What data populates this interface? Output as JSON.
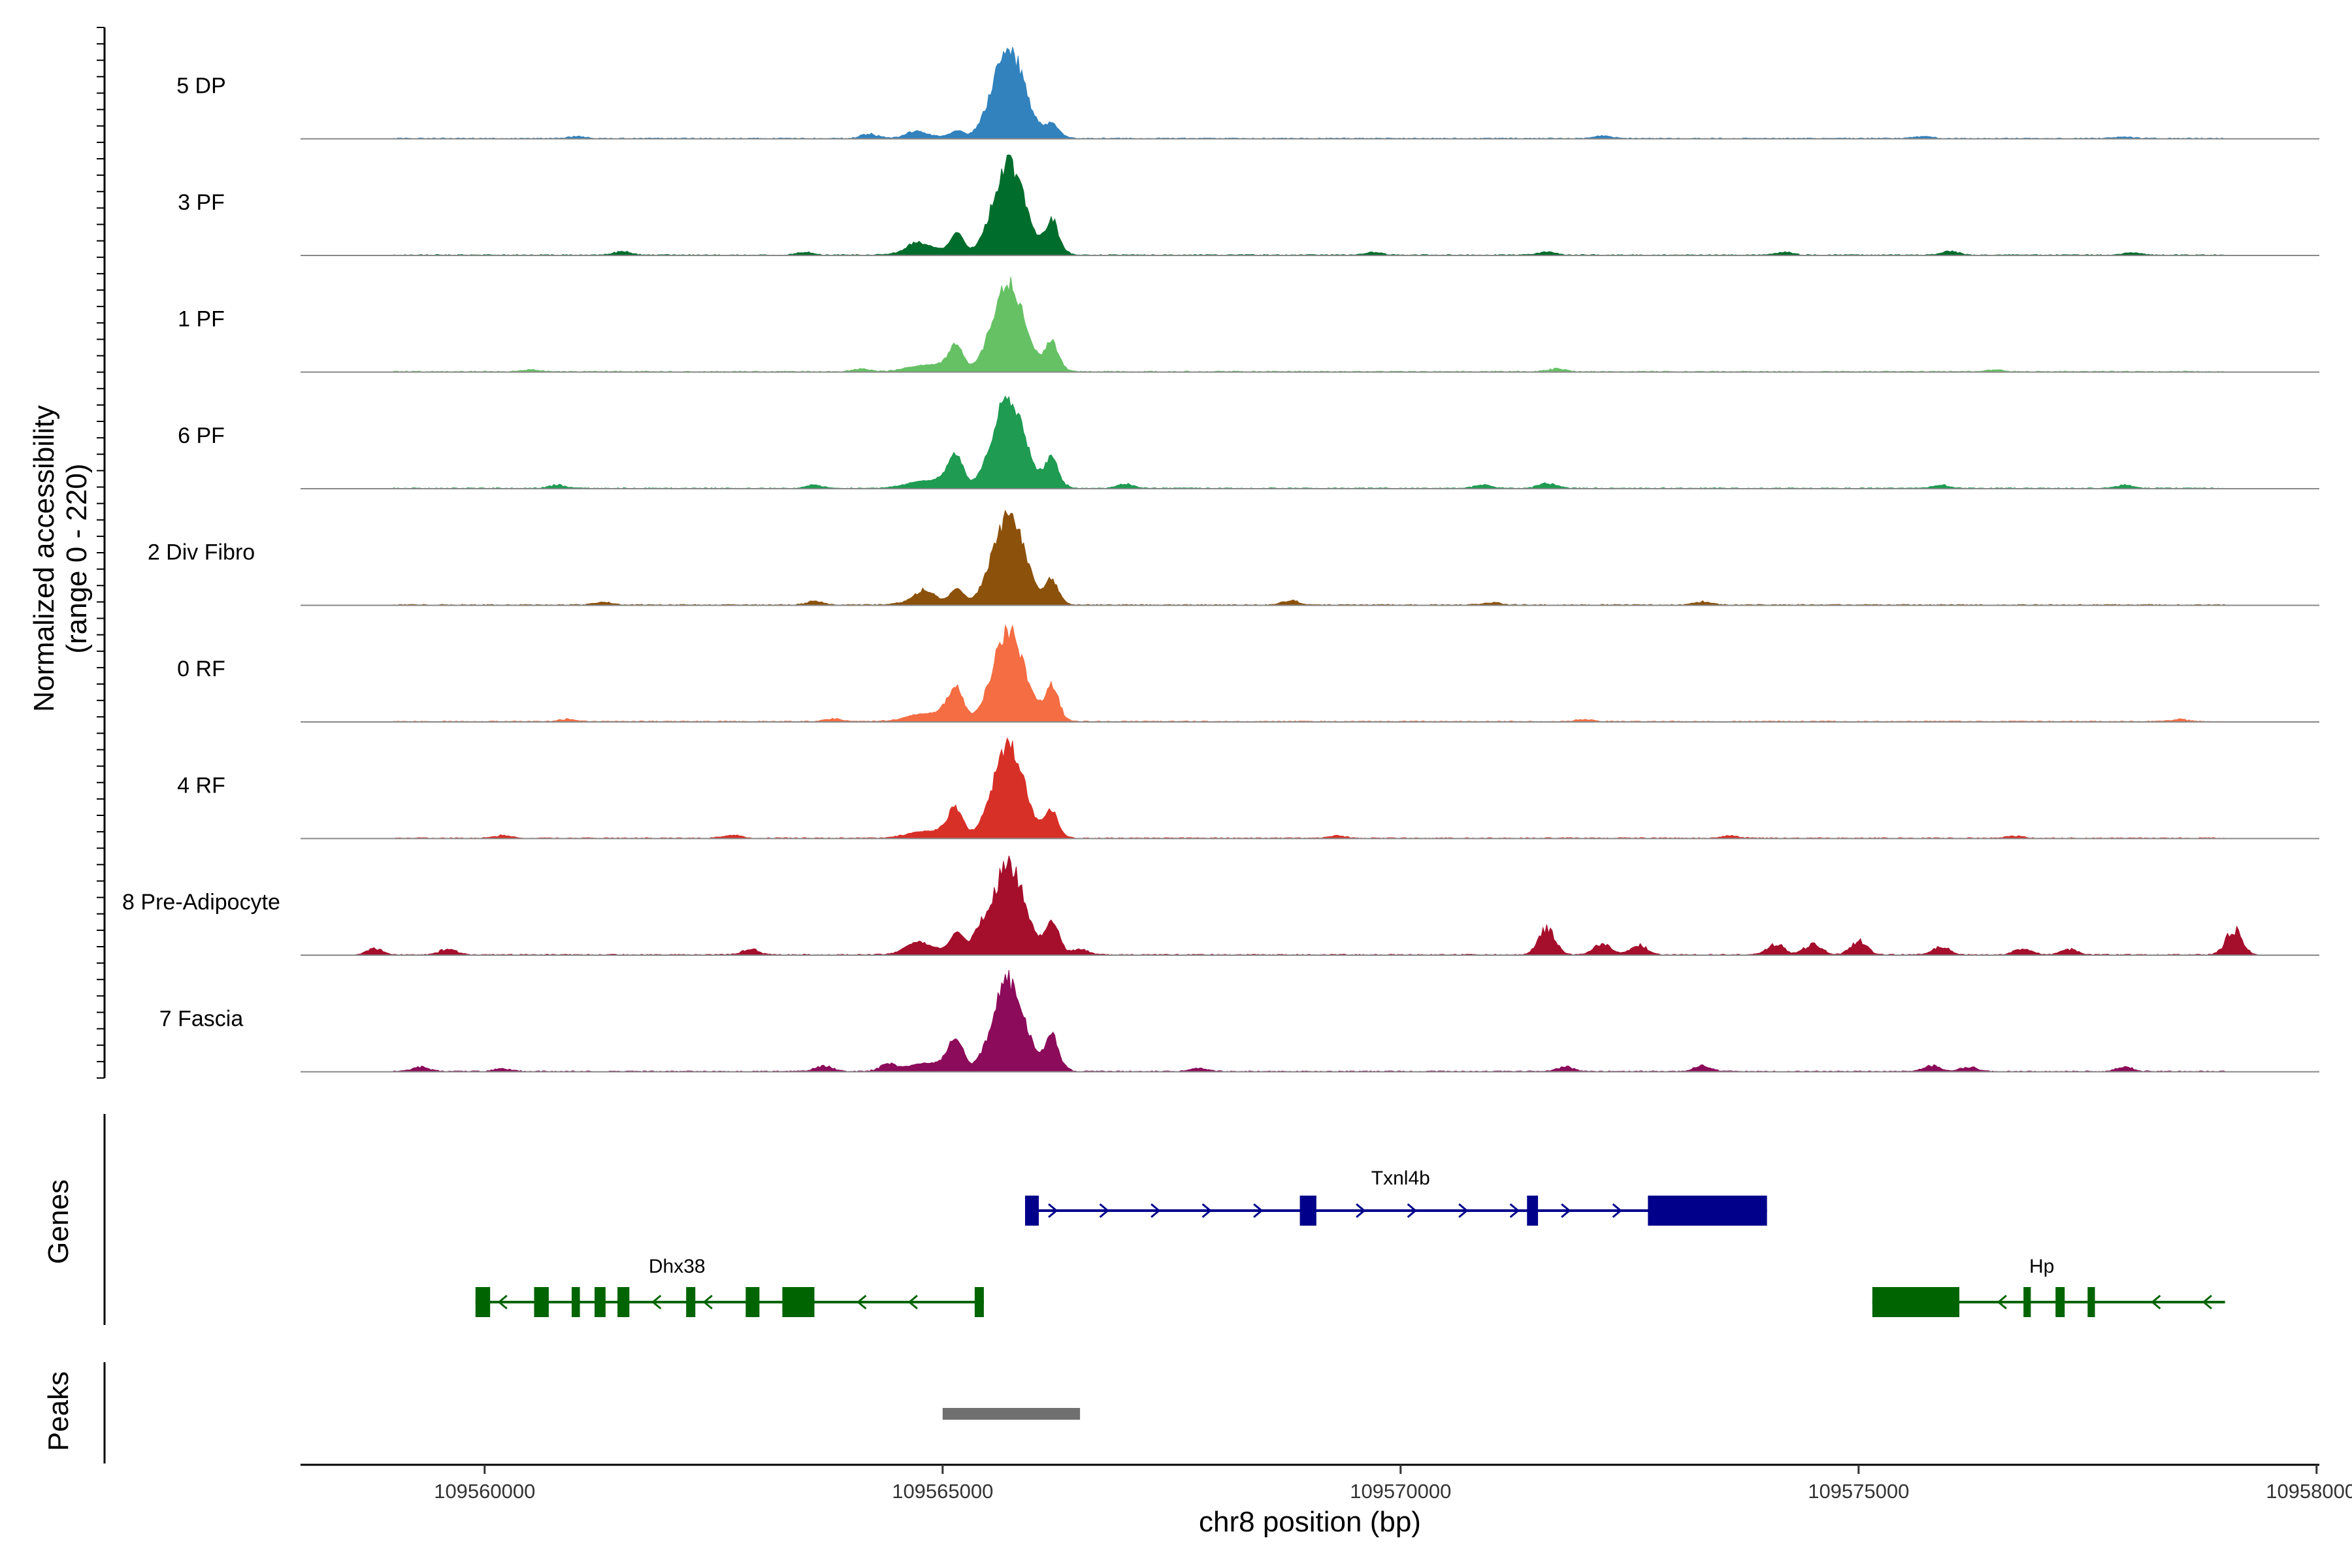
{
  "chart_data": {
    "type": "area",
    "description_free": true,
    "y_axis_title": [
      "Normalized accessibility",
      "(range 0 - 220)"
    ],
    "ylim": [
      0,
      220
    ],
    "xlim": [
      109557990,
      109580030
    ],
    "x_axis_title": "chr8 position (bp)",
    "x_ticks": [
      109560000,
      109565000,
      109570000,
      109575000,
      109580000
    ],
    "x_tick_labels": [
      "109560000",
      "109565000",
      "109570000",
      "109575000",
      "109580000"
    ],
    "main_peak": {
      "center": 109565720,
      "range": [
        109565100,
        109566250
      ]
    },
    "tracks": [
      {
        "name": "5 DP",
        "color": "#3182BD",
        "peak": 150,
        "shoulder": 10,
        "background": [
          [
            109561000,
            4
          ],
          [
            109564200,
            8
          ],
          [
            109564700,
            10
          ],
          [
            109566200,
            14
          ],
          [
            109572200,
            5
          ],
          [
            109575700,
            4
          ],
          [
            109577900,
            3
          ]
        ]
      },
      {
        "name": "3 PF",
        "color": "#006D2C",
        "peak": 150,
        "shoulder": 30,
        "background": [
          [
            109561500,
            6
          ],
          [
            109563500,
            5
          ],
          [
            109564700,
            10
          ],
          [
            109566200,
            30
          ],
          [
            109569700,
            5
          ],
          [
            109571600,
            6
          ],
          [
            109574200,
            5
          ],
          [
            109576000,
            7
          ],
          [
            109578000,
            4
          ]
        ]
      },
      {
        "name": "1 PF",
        "color": "#66C164",
        "peak": 150,
        "shoulder": 25,
        "background": [
          [
            109560500,
            4
          ],
          [
            109564100,
            5
          ],
          [
            109565100,
            18
          ],
          [
            109566200,
            25
          ],
          [
            109571700,
            5
          ],
          [
            109576500,
            4
          ]
        ]
      },
      {
        "name": "6 PF",
        "color": "#1F9B52",
        "peak": 150,
        "shoulder": 28,
        "background": [
          [
            109560800,
            6
          ],
          [
            109563600,
            6
          ],
          [
            109565100,
            28
          ],
          [
            109566200,
            25
          ],
          [
            109567000,
            8
          ],
          [
            109570900,
            6
          ],
          [
            109571600,
            10
          ],
          [
            109575900,
            6
          ],
          [
            109577900,
            6
          ]
        ]
      },
      {
        "name": "2 Div Fibro",
        "color": "#8C510A",
        "peak": 150,
        "shoulder": 22,
        "background": [
          [
            109561300,
            5
          ],
          [
            109563600,
            6
          ],
          [
            109564800,
            18
          ],
          [
            109566200,
            20
          ],
          [
            109568800,
            8
          ],
          [
            109571000,
            5
          ],
          [
            109573300,
            6
          ]
        ]
      },
      {
        "name": "0 RF",
        "color": "#F46D43",
        "peak": 150,
        "shoulder": 30,
        "background": [
          [
            109560900,
            4
          ],
          [
            109563800,
            5
          ],
          [
            109565100,
            30
          ],
          [
            109566200,
            30
          ],
          [
            109572000,
            4
          ],
          [
            109578500,
            4
          ]
        ]
      },
      {
        "name": "4 RF",
        "color": "#D73027",
        "peak": 150,
        "shoulder": 25,
        "background": [
          [
            109560200,
            5
          ],
          [
            109562700,
            6
          ],
          [
            109565100,
            25
          ],
          [
            109566200,
            22
          ],
          [
            109569300,
            4
          ],
          [
            109573600,
            4
          ],
          [
            109576700,
            4
          ]
        ]
      },
      {
        "name": "8 Pre-Adipocyte",
        "color": "#A50F2C",
        "peak": 150,
        "shoulder": 30,
        "background": [
          [
            109558800,
            12
          ],
          [
            109559600,
            10
          ],
          [
            109562900,
            10
          ],
          [
            109564700,
            12
          ],
          [
            109565400,
            25
          ],
          [
            109566200,
            28
          ],
          [
            109566500,
            10
          ],
          [
            109571600,
            45
          ],
          [
            109572200,
            20
          ],
          [
            109572600,
            18
          ],
          [
            109574100,
            20
          ],
          [
            109574500,
            20
          ],
          [
            109575000,
            25
          ],
          [
            109575900,
            15
          ],
          [
            109576800,
            12
          ],
          [
            109577300,
            10
          ],
          [
            109579100,
            45
          ]
        ]
      },
      {
        "name": "7 Fascia",
        "color": "#8C0B5A",
        "peak": 150,
        "shoulder": 30,
        "background": [
          [
            109559300,
            8
          ],
          [
            109560200,
            5
          ],
          [
            109563700,
            10
          ],
          [
            109564400,
            12
          ],
          [
            109565100,
            25
          ],
          [
            109566200,
            30
          ],
          [
            109567800,
            6
          ],
          [
            109571800,
            8
          ],
          [
            109573300,
            10
          ],
          [
            109575800,
            10
          ],
          [
            109576200,
            8
          ],
          [
            109577900,
            8
          ]
        ]
      }
    ],
    "genes": [
      {
        "name": "Txnl4b",
        "strand": "+",
        "color": "#00008B",
        "start": 109565900,
        "end": 109574000,
        "exons": [
          [
            109565900,
            109566050
          ],
          [
            109568900,
            109569080
          ],
          [
            109571380,
            109571500
          ],
          [
            109572700,
            109574000
          ]
        ]
      },
      {
        "name": "Dhx38",
        "strand": "-",
        "color": "#006400",
        "start": 109559900,
        "end": 109565450,
        "exons": [
          [
            109559900,
            109560060
          ],
          [
            109560540,
            109560700
          ],
          [
            109560950,
            109561040
          ],
          [
            109561200,
            109561320
          ],
          [
            109561450,
            109561580
          ],
          [
            109562200,
            109562300
          ],
          [
            109562850,
            109563000
          ],
          [
            109563250,
            109563600
          ],
          [
            109565350,
            109565450
          ]
        ]
      },
      {
        "name": "Hp",
        "strand": "-",
        "color": "#006400",
        "start": 109575150,
        "end": 109579000,
        "exons": [
          [
            109575150,
            109576100
          ],
          [
            109576800,
            109576880
          ],
          [
            109577150,
            109577250
          ],
          [
            109577500,
            109577580
          ]
        ]
      }
    ],
    "peaks": [
      [
        109565000,
        109566500
      ]
    ],
    "panel_titles": {
      "genes": "Genes",
      "peaks": "Peaks"
    }
  }
}
